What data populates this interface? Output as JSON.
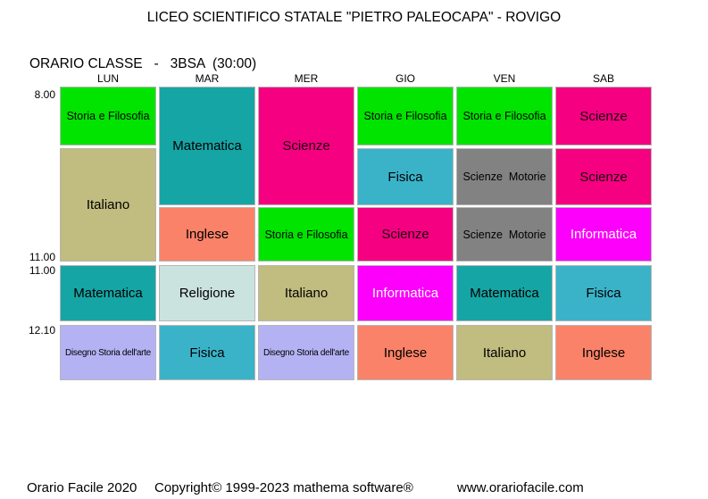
{
  "title": "LICEO SCIENTIFICO STATALE \"PIETRO PALEOCAPA\" - ROVIGO",
  "subtitle": "ORARIO CLASSE   -   3BSA  (30:00)",
  "days": [
    "LUN",
    "MAR",
    "MER",
    "GIO",
    "VEN",
    "SAB"
  ],
  "time_labels": [
    {
      "text": "8.00",
      "position": "row-0-top"
    },
    {
      "text": "11.00",
      "position": "block-1-end"
    },
    {
      "text": "11.00",
      "position": "row-3-top"
    },
    {
      "text": "12.10",
      "position": "row-4-top"
    }
  ],
  "subject_colors": {
    "Storia e Filosofia": {
      "bg": "#00e400",
      "fg": "#000000"
    },
    "Italiano": {
      "bg": "#c1bc7f",
      "fg": "#000000"
    },
    "Matematica": {
      "bg": "#16a5a5",
      "fg": "#000000"
    },
    "Disegno Storia dell'arte": {
      "bg": "#b5b2f4",
      "fg": "#000000"
    },
    "Inglese": {
      "bg": "#fa8268",
      "fg": "#000000"
    },
    "Religione": {
      "bg": "#cbe3df",
      "fg": "#000000"
    },
    "Fisica": {
      "bg": "#3ab3c9",
      "fg": "#000000"
    },
    "Scienze": {
      "bg": "#f50080",
      "fg": "#1a0010"
    },
    "Scienze  Motorie": {
      "bg": "#828282",
      "fg": "#000000"
    },
    "Informatica": {
      "bg": "#fc00fc",
      "fg": "#ffffff"
    }
  },
  "lessons": [
    {
      "day": 0,
      "row": 0,
      "span": 1,
      "subject": "Storia e Filosofia"
    },
    {
      "day": 0,
      "row": 1,
      "span": 2,
      "subject": "Italiano"
    },
    {
      "day": 0,
      "row": 3,
      "span": 1,
      "subject": "Matematica"
    },
    {
      "day": 0,
      "row": 4,
      "span": 1,
      "subject": "Disegno Storia dell'arte"
    },
    {
      "day": 1,
      "row": 0,
      "span": 2,
      "subject": "Matematica"
    },
    {
      "day": 1,
      "row": 2,
      "span": 1,
      "subject": "Inglese"
    },
    {
      "day": 1,
      "row": 3,
      "span": 1,
      "subject": "Religione"
    },
    {
      "day": 1,
      "row": 4,
      "span": 1,
      "subject": "Fisica"
    },
    {
      "day": 2,
      "row": 0,
      "span": 2,
      "subject": "Scienze"
    },
    {
      "day": 2,
      "row": 2,
      "span": 1,
      "subject": "Storia e Filosofia"
    },
    {
      "day": 2,
      "row": 3,
      "span": 1,
      "subject": "Italiano"
    },
    {
      "day": 2,
      "row": 4,
      "span": 1,
      "subject": "Disegno Storia dell'arte"
    },
    {
      "day": 3,
      "row": 0,
      "span": 1,
      "subject": "Storia e Filosofia"
    },
    {
      "day": 3,
      "row": 1,
      "span": 1,
      "subject": "Fisica"
    },
    {
      "day": 3,
      "row": 2,
      "span": 1,
      "subject": "Scienze"
    },
    {
      "day": 3,
      "row": 3,
      "span": 1,
      "subject": "Informatica"
    },
    {
      "day": 3,
      "row": 4,
      "span": 1,
      "subject": "Inglese"
    },
    {
      "day": 4,
      "row": 0,
      "span": 1,
      "subject": "Storia e Filosofia"
    },
    {
      "day": 4,
      "row": 1,
      "span": 1,
      "subject": "Scienze  Motorie"
    },
    {
      "day": 4,
      "row": 2,
      "span": 1,
      "subject": "Scienze  Motorie"
    },
    {
      "day": 4,
      "row": 3,
      "span": 1,
      "subject": "Matematica"
    },
    {
      "day": 4,
      "row": 4,
      "span": 1,
      "subject": "Italiano"
    },
    {
      "day": 5,
      "row": 0,
      "span": 1,
      "subject": "Scienze"
    },
    {
      "day": 5,
      "row": 1,
      "span": 1,
      "subject": "Scienze"
    },
    {
      "day": 5,
      "row": 2,
      "span": 1,
      "subject": "Informatica"
    },
    {
      "day": 5,
      "row": 3,
      "span": 1,
      "subject": "Fisica"
    },
    {
      "day": 5,
      "row": 4,
      "span": 1,
      "subject": "Inglese"
    }
  ],
  "footer": {
    "left": "Orario Facile 2020",
    "center": "Copyright© 1999-2023 mathema software®",
    "right": "www.orariofacile.com"
  }
}
